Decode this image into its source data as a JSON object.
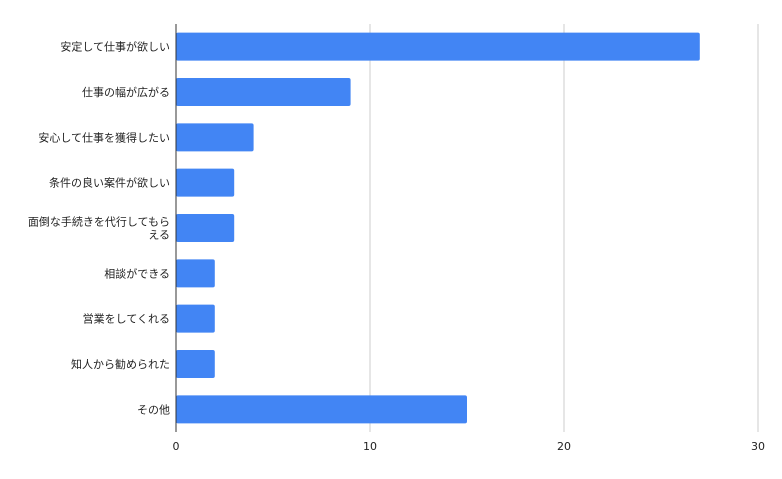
{
  "chart_data": {
    "type": "bar",
    "orientation": "horizontal",
    "categories": [
      [
        "安定して仕事が欲しい"
      ],
      [
        "仕事の幅が広がる"
      ],
      [
        "安心して仕事を獲得したい"
      ],
      [
        "条件の良い案件が欲しい"
      ],
      [
        "面倒な手続きを代行してもら",
        "える"
      ],
      [
        "相談ができる"
      ],
      [
        "営業をしてくれる"
      ],
      [
        "知人から勧められた"
      ],
      [
        "その他"
      ]
    ],
    "values": [
      27,
      9,
      4,
      3,
      3,
      2,
      2,
      2,
      15
    ],
    "xlim": [
      0,
      30
    ],
    "xticks": [
      "0",
      "10",
      "20",
      "30"
    ],
    "grid": true,
    "legend": "none",
    "bar_color": "#4285f4",
    "grid_color": "#cccccc",
    "axis_color": "#333333"
  }
}
